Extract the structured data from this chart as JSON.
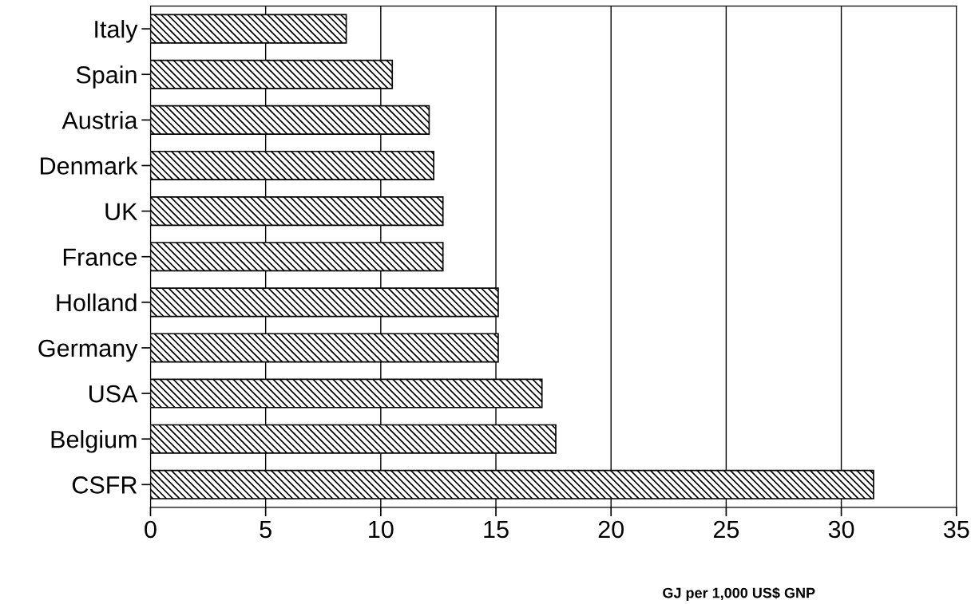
{
  "chart_data": {
    "type": "bar",
    "orientation": "horizontal",
    "xlabel": "GJ per 1,000 US$ GNP",
    "categories": [
      "Italy",
      "Spain",
      "Austria",
      "Denmark",
      "UK",
      "France",
      "Holland",
      "Germany",
      "USA",
      "Belgium",
      "CSFR"
    ],
    "values": [
      8.5,
      10.5,
      12.1,
      12.3,
      12.7,
      12.7,
      15.1,
      15.1,
      17.0,
      17.6,
      31.4
    ],
    "color": "#000000",
    "xlim": [
      0,
      35
    ],
    "xticks": [
      0,
      5,
      10,
      15,
      20,
      25,
      30,
      35
    ],
    "grid": "x"
  }
}
